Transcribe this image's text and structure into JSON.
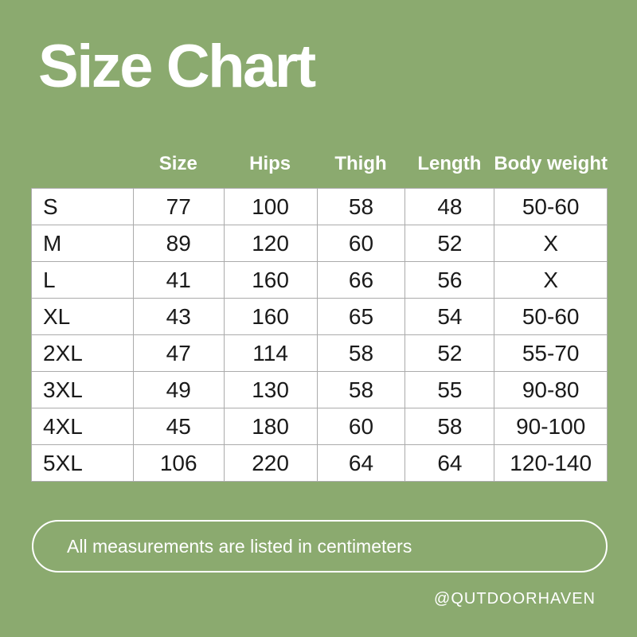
{
  "page": {
    "title": "Size Chart",
    "note": "All measurements are listed in centimeters",
    "handle": "@QUTDOORHAVEN"
  },
  "colors": {
    "background": "#8BAA6F",
    "table_background": "#FFFFFF",
    "grid_line": "#ABABAB",
    "text_dark": "#1A1A1A",
    "text_light": "#FFFFFF"
  },
  "chart_data": {
    "type": "table",
    "title": "Size Chart",
    "columns": [
      "Size",
      "Hips",
      "Thigh",
      "Length",
      "Body weight"
    ],
    "rows": [
      {
        "label": "S",
        "values": [
          "77",
          "100",
          "58",
          "48",
          "50-60"
        ]
      },
      {
        "label": "M",
        "values": [
          "89",
          "120",
          "60",
          "52",
          "X"
        ]
      },
      {
        "label": "L",
        "values": [
          "41",
          "160",
          "66",
          "56",
          "X"
        ]
      },
      {
        "label": "XL",
        "values": [
          "43",
          "160",
          "65",
          "54",
          "50-60"
        ]
      },
      {
        "label": "2XL",
        "values": [
          "47",
          "114",
          "58",
          "52",
          "55-70"
        ]
      },
      {
        "label": "3XL",
        "values": [
          "49",
          "130",
          "58",
          "55",
          "90-80"
        ]
      },
      {
        "label": "4XL",
        "values": [
          "45",
          "180",
          "60",
          "58",
          "90-100"
        ]
      },
      {
        "label": "5XL",
        "values": [
          "106",
          "220",
          "64",
          "64",
          "120-140"
        ]
      }
    ],
    "note": "All measurements are listed in centimeters"
  }
}
